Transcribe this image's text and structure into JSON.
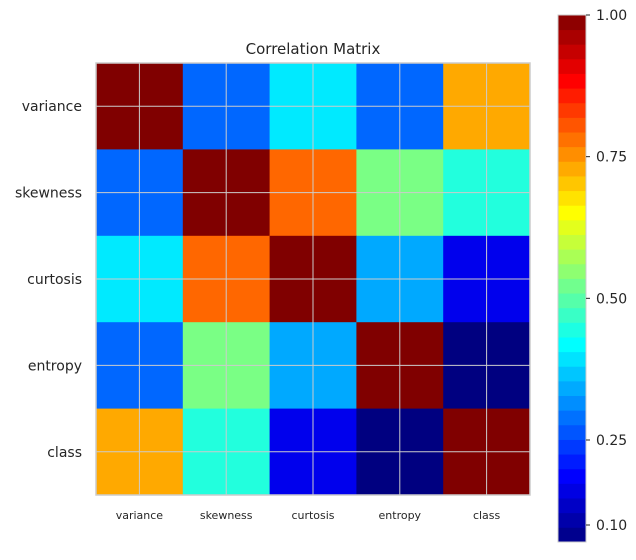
{
  "chart_data": {
    "type": "heatmap",
    "title": "Correlation Matrix",
    "row_labels": [
      "variance",
      "skewness",
      "curtosis",
      "entropy",
      "class"
    ],
    "col_labels": [
      "variance",
      "skewness",
      "curtosis",
      "entropy",
      "class"
    ],
    "values": [
      [
        1.0,
        0.28,
        0.4,
        0.28,
        0.73
      ],
      [
        0.28,
        1.0,
        0.79,
        0.53,
        0.45
      ],
      [
        0.4,
        0.79,
        1.0,
        0.34,
        0.17
      ],
      [
        0.28,
        0.53,
        0.34,
        1.0,
        0.07
      ],
      [
        0.73,
        0.45,
        0.17,
        0.07,
        1.0
      ]
    ],
    "colormap": "jet",
    "colorbar": {
      "range": [
        0.07,
        1.0
      ],
      "ticks": [
        0.1,
        0.25,
        0.5,
        0.75,
        1.0
      ],
      "tick_labels": [
        "0.10",
        "0.25",
        "0.50",
        "0.75",
        "1.00"
      ]
    },
    "grid": true,
    "grid_color": "#cccccc"
  }
}
